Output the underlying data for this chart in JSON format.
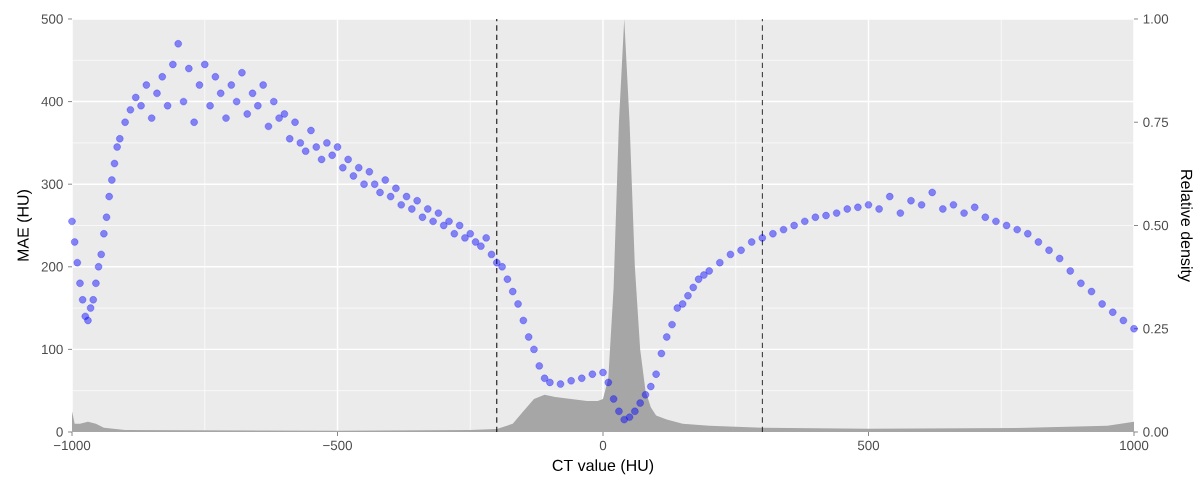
{
  "chart_data": {
    "type": "scatter",
    "xlabel": "CT value (HU)",
    "ylabel": "MAE (HU)",
    "y2label": "Relative density",
    "xlim": [
      -1000,
      1000
    ],
    "xticks": [
      {
        "value": -1000,
        "label": "−1000"
      },
      {
        "value": -500,
        "label": "−500"
      },
      0,
      500,
      1000
    ],
    "ylim": [
      0,
      500
    ],
    "yticks": [
      0,
      100,
      200,
      300,
      400,
      500
    ],
    "y2lim": [
      0,
      1
    ],
    "y2ticks": [
      {
        "value": 0,
        "label": "0.00"
      },
      {
        "value": 0.25,
        "label": "0.25"
      },
      {
        "value": 0.5,
        "label": "0.50"
      },
      {
        "value": 0.75,
        "label": "0.75"
      },
      {
        "value": 1,
        "label": "1.00"
      }
    ],
    "grid": true,
    "ref_lines": [
      {
        "axis": "x",
        "value": -200,
        "color": "#000000",
        "line_style": "dashed"
      },
      {
        "axis": "x",
        "value": 300,
        "color": "#000000",
        "line_style": "dashed"
      }
    ],
    "series": [
      {
        "type": "scatter",
        "color": "#0000ff",
        "marker": "circle",
        "x": [
          -1000,
          -995,
          -990,
          -985,
          -980,
          -975,
          -970,
          -965,
          -960,
          -955,
          -950,
          -945,
          -940,
          -935,
          -930,
          -925,
          -920,
          -915,
          -910,
          -900,
          -890,
          -880,
          -870,
          -860,
          -850,
          -840,
          -830,
          -820,
          -810,
          -800,
          -790,
          -780,
          -770,
          -760,
          -750,
          -740,
          -730,
          -720,
          -710,
          -700,
          -690,
          -680,
          -670,
          -660,
          -650,
          -640,
          -630,
          -620,
          -610,
          -600,
          -590,
          -580,
          -570,
          -560,
          -550,
          -540,
          -530,
          -520,
          -510,
          -500,
          -490,
          -480,
          -470,
          -460,
          -450,
          -440,
          -430,
          -420,
          -410,
          -400,
          -390,
          -380,
          -370,
          -360,
          -350,
          -340,
          -330,
          -320,
          -310,
          -300,
          -290,
          -280,
          -270,
          -260,
          -250,
          -240,
          -230,
          -220,
          -210,
          -200,
          -190,
          -180,
          -170,
          -160,
          -150,
          -140,
          -130,
          -120,
          -110,
          -100,
          -80,
          -60,
          -40,
          -20,
          0,
          10,
          20,
          30,
          40,
          50,
          60,
          70,
          80,
          90,
          100,
          110,
          120,
          130,
          140,
          150,
          160,
          170,
          180,
          190,
          200,
          220,
          240,
          260,
          280,
          300,
          320,
          340,
          360,
          380,
          400,
          420,
          440,
          460,
          480,
          500,
          520,
          540,
          560,
          580,
          600,
          620,
          640,
          660,
          680,
          700,
          720,
          740,
          760,
          780,
          800,
          820,
          840,
          860,
          880,
          900,
          920,
          940,
          960,
          980,
          1000
        ],
        "values": [
          255,
          230,
          205,
          180,
          160,
          140,
          135,
          150,
          160,
          180,
          200,
          215,
          240,
          260,
          285,
          305,
          325,
          345,
          355,
          375,
          390,
          405,
          395,
          420,
          380,
          410,
          430,
          395,
          445,
          470,
          400,
          440,
          375,
          420,
          445,
          395,
          430,
          410,
          380,
          420,
          400,
          435,
          385,
          410,
          395,
          420,
          370,
          400,
          380,
          385,
          355,
          375,
          350,
          340,
          365,
          345,
          330,
          350,
          335,
          345,
          320,
          330,
          310,
          320,
          300,
          315,
          300,
          290,
          305,
          285,
          295,
          275,
          285,
          270,
          280,
          260,
          270,
          255,
          265,
          250,
          255,
          240,
          250,
          235,
          240,
          230,
          225,
          235,
          215,
          205,
          200,
          185,
          170,
          155,
          135,
          115,
          100,
          80,
          65,
          60,
          58,
          62,
          65,
          70,
          72,
          60,
          40,
          25,
          15,
          18,
          25,
          35,
          45,
          55,
          70,
          95,
          115,
          130,
          150,
          155,
          165,
          175,
          185,
          190,
          195,
          205,
          215,
          220,
          230,
          235,
          240,
          245,
          250,
          255,
          260,
          262,
          265,
          270,
          272,
          275,
          270,
          285,
          265,
          280,
          275,
          290,
          270,
          275,
          265,
          272,
          260,
          255,
          250,
          245,
          240,
          230,
          220,
          210,
          195,
          180,
          170,
          155,
          145,
          135,
          125
        ]
      },
      {
        "type": "area",
        "axis": "y2",
        "color": "#a6a6a6",
        "x": [
          -1000,
          -995,
          -985,
          -970,
          -955,
          -940,
          -900,
          -500,
          -250,
          -200,
          -170,
          -150,
          -130,
          -110,
          -90,
          -60,
          -30,
          -10,
          0,
          10,
          20,
          30,
          40,
          50,
          60,
          70,
          80,
          90,
          100,
          120,
          150,
          200,
          300,
          500,
          800,
          950,
          1000
        ],
        "values": [
          0.05,
          0.02,
          0.02,
          0.025,
          0.02,
          0.01,
          0.005,
          0.003,
          0.005,
          0.007,
          0.02,
          0.05,
          0.08,
          0.09,
          0.085,
          0.08,
          0.075,
          0.075,
          0.08,
          0.13,
          0.35,
          0.75,
          1.0,
          0.75,
          0.4,
          0.2,
          0.1,
          0.06,
          0.04,
          0.03,
          0.02,
          0.015,
          0.01,
          0.008,
          0.01,
          0.015,
          0.025
        ]
      }
    ]
  }
}
